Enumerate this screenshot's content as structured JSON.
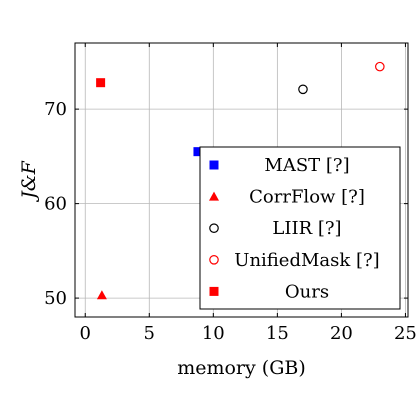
{
  "chart_data": {
    "type": "scatter",
    "xlabel": "memory (GB)",
    "ylabel": "J&F",
    "xlim": [
      -0.8,
      25.2
    ],
    "ylim": [
      48,
      77
    ],
    "xticks": [
      0,
      5,
      10,
      15,
      20,
      25
    ],
    "yticks": [
      50,
      60,
      70
    ],
    "grid": true,
    "legend_position": "bottom-right",
    "series": [
      {
        "name": "MAST [?]",
        "marker": "filled-square",
        "color": "#0000ff",
        "points": [
          {
            "x": 8.8,
            "y": 65.5
          }
        ]
      },
      {
        "name": "CorrFlow [?]",
        "marker": "filled-triangle",
        "color": "#ff0000",
        "points": [
          {
            "x": 1.3,
            "y": 50.3
          }
        ]
      },
      {
        "name": "LIIR [?]",
        "marker": "open-circle",
        "color": "#000000",
        "points": [
          {
            "x": 17.0,
            "y": 72.1
          }
        ]
      },
      {
        "name": "UnifiedMask [?]",
        "marker": "open-circle",
        "color": "#ff0000",
        "points": [
          {
            "x": 23.0,
            "y": 74.5
          }
        ]
      },
      {
        "name": "Ours",
        "marker": "filled-square",
        "color": "#ff0000",
        "points": [
          {
            "x": 1.2,
            "y": 72.8
          }
        ]
      }
    ]
  }
}
